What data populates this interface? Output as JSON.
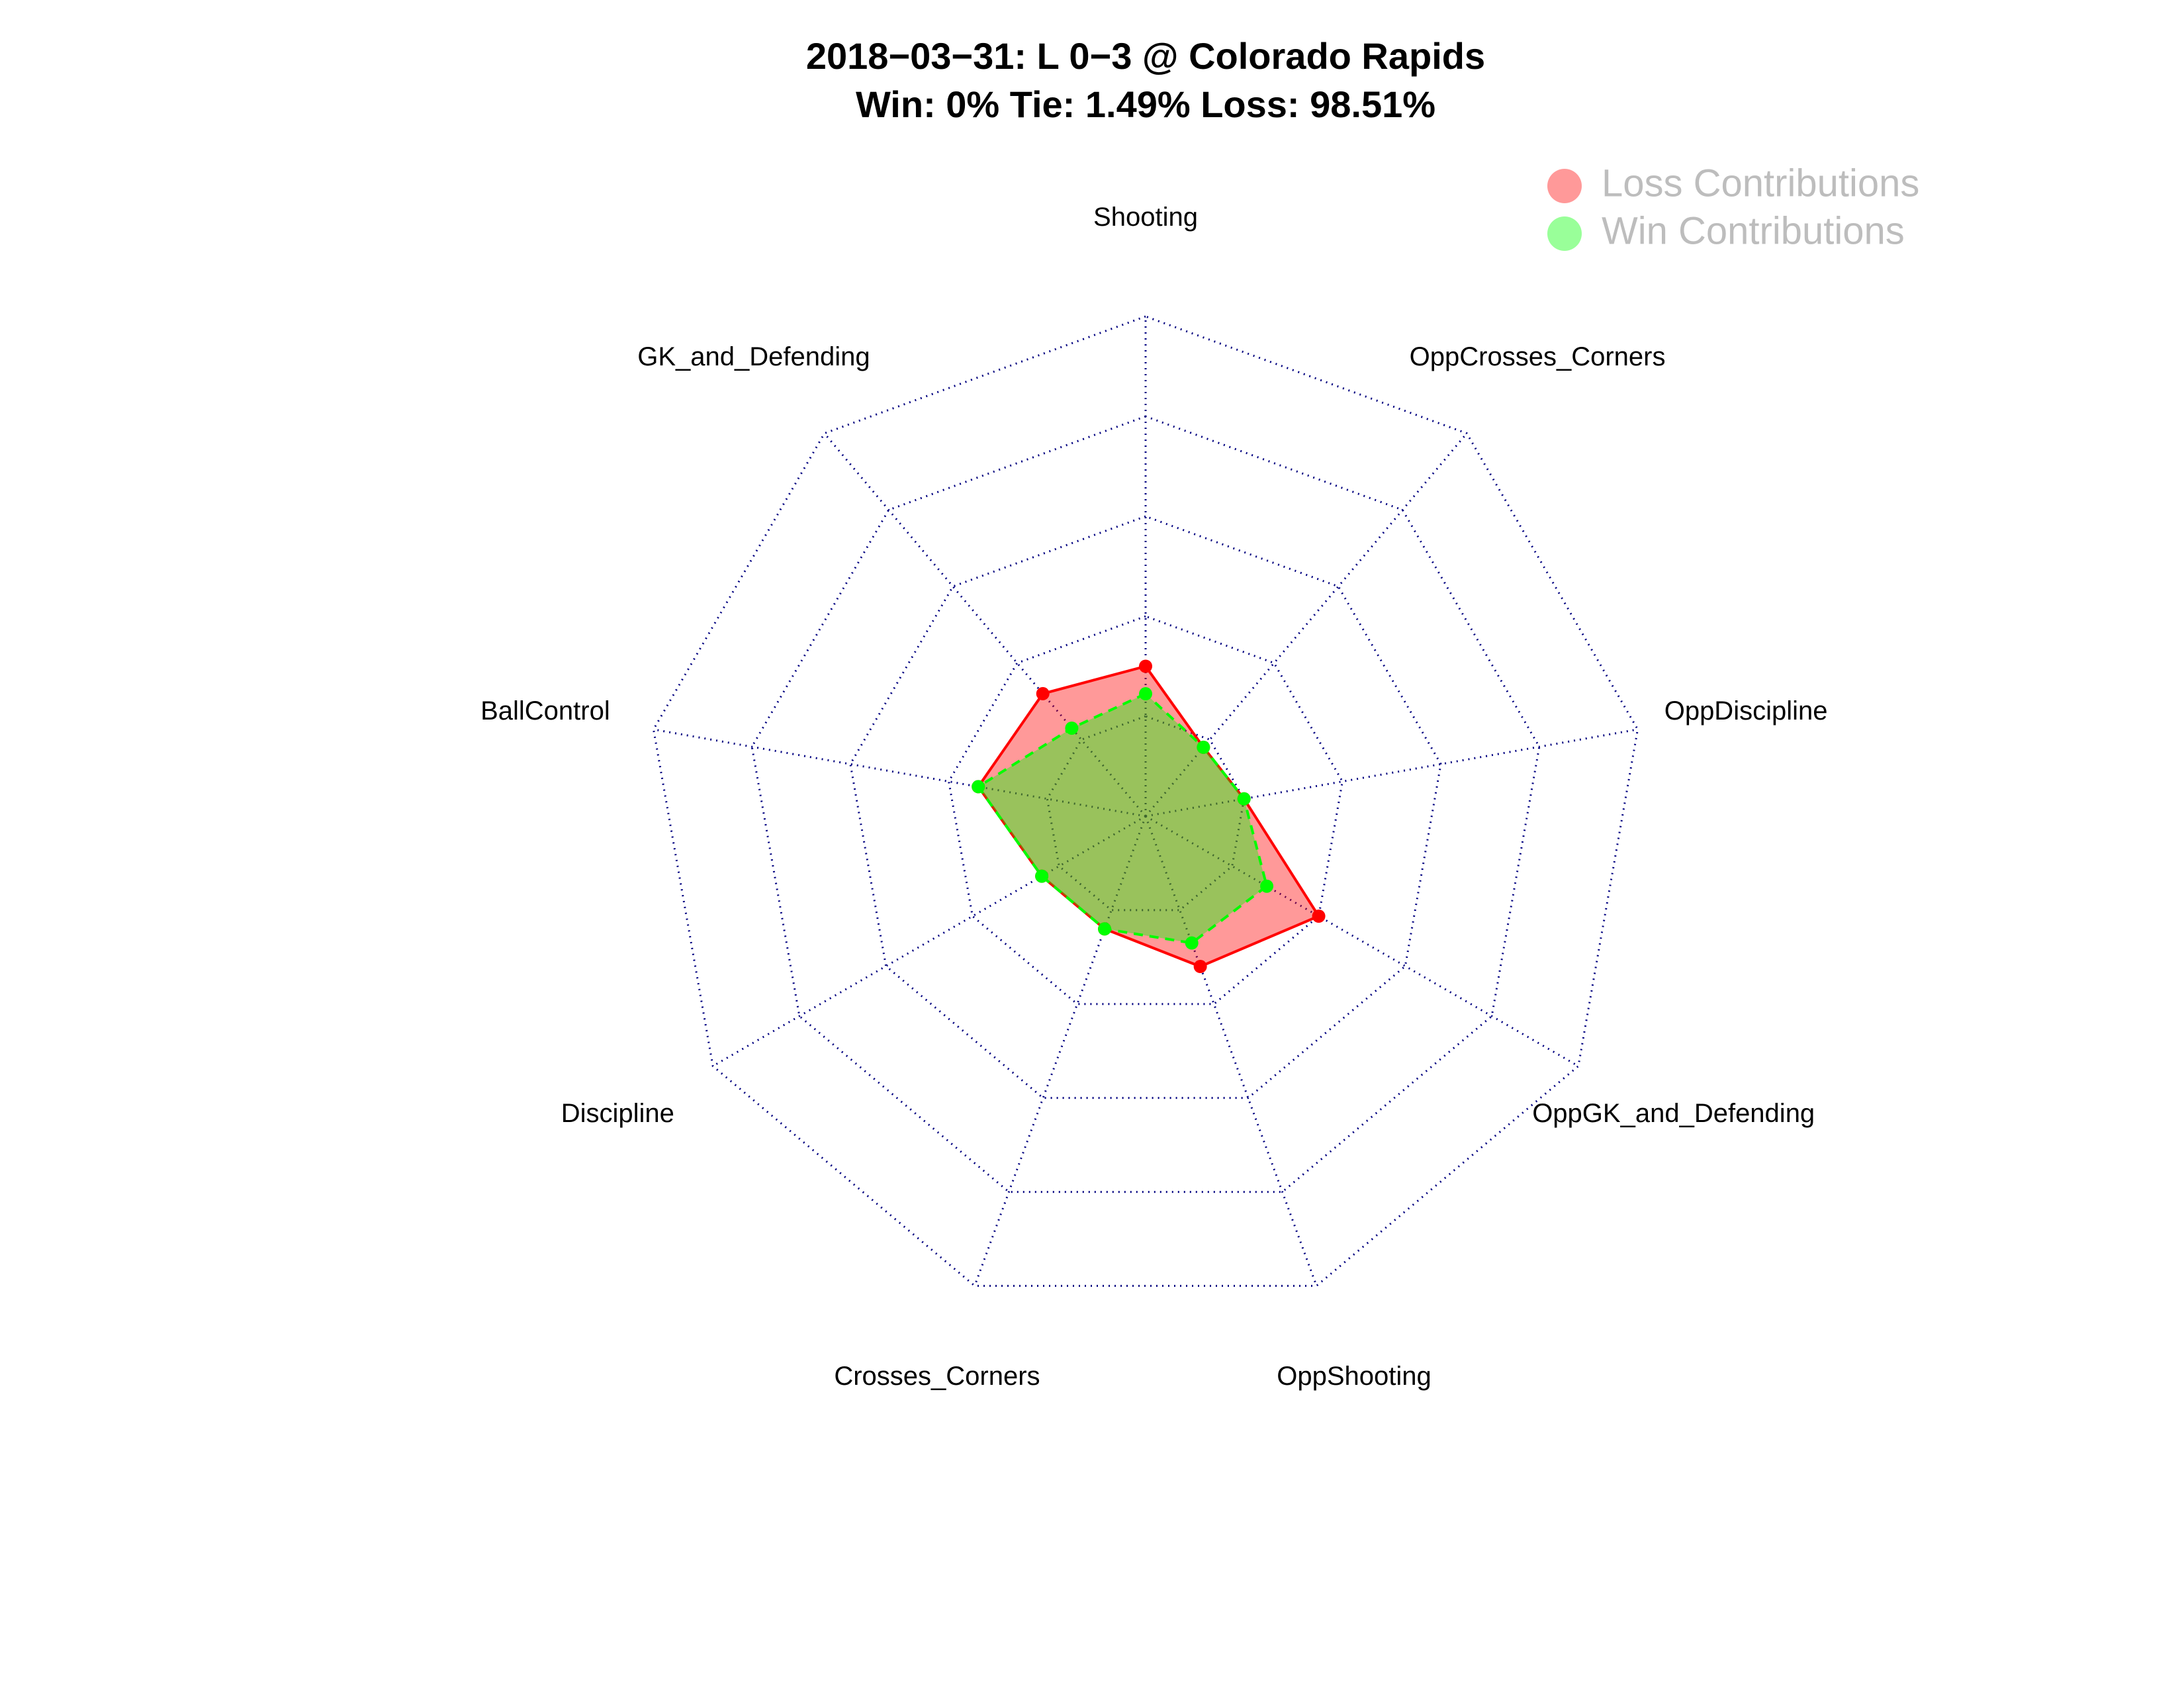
{
  "chart_data": {
    "type": "radar",
    "title": "2018−03−31:  L 0−3   @ Colorado Rapids",
    "subtitle": "Win: 0% Tie: 1.49% Loss: 98.51%",
    "categories": [
      "Shooting",
      "GK_and_Defending",
      "BallControl",
      "Discipline",
      "Crosses_Corners",
      "OppShooting",
      "OppGK_and_Defending",
      "OppDiscipline",
      "OppCrosses_Corners"
    ],
    "series": [
      {
        "name": "Loss Contributions",
        "color": "#ff0000",
        "values": [
          0.3,
          0.32,
          0.34,
          0.24,
          0.24,
          0.32,
          0.4,
          0.2,
          0.18
        ]
      },
      {
        "name": "Win Contributions",
        "color": "#00ff00",
        "values": [
          0.245,
          0.23,
          0.34,
          0.24,
          0.24,
          0.27,
          0.28,
          0.2,
          0.18
        ]
      }
    ],
    "rlim": [
      0,
      1
    ],
    "rticks": [
      0.2,
      0.4,
      0.6,
      0.8,
      1
    ],
    "grid": true,
    "legend": "top-right"
  }
}
